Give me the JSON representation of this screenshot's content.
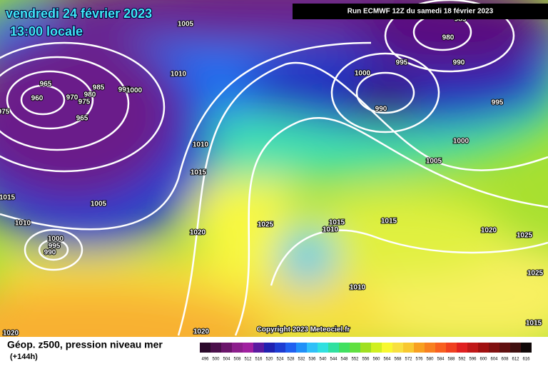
{
  "header": {
    "date": "vendredi 24 février 2023",
    "time": "13:00 locale",
    "run": "Run ECMWF 12Z du samedi 18 février 2023"
  },
  "copyright": "Copyright 2023 Meteociel.fr",
  "footer": {
    "title": "Géop. z500, pression niveau mer",
    "lead": "(+144h)"
  },
  "isobar_labels": [
    "1005",
    "1010",
    "965",
    "960",
    "970",
    "980",
    "975",
    "985",
    "995",
    "1000",
    "965",
    "975",
    "1010",
    "1015",
    "1005",
    "1010",
    "1015",
    "1000",
    "995",
    "990",
    "1020",
    "1025",
    "1015",
    "1010",
    "1015",
    "1020",
    "1025",
    "1025",
    "1010",
    "1015",
    "1020",
    "1020",
    "1000",
    "995",
    "990",
    "980",
    "985",
    "990",
    "995",
    "1000",
    "1005"
  ],
  "scale": {
    "labels": [
      496,
      500,
      504,
      508,
      512,
      516,
      520,
      524,
      528,
      532,
      536,
      540,
      544,
      548,
      552,
      556,
      560,
      564,
      568,
      572,
      576,
      580,
      584,
      588,
      592,
      596,
      600,
      604,
      608,
      612,
      616
    ],
    "colors": [
      "#2b0a2b",
      "#4b0f4b",
      "#6b156b",
      "#8c1e8c",
      "#a020a0",
      "#5a1aa0",
      "#2020b0",
      "#1e3cd2",
      "#2060f0",
      "#2090f8",
      "#30c0f8",
      "#30e0e0",
      "#30e0a0",
      "#40e060",
      "#60e040",
      "#a0e020",
      "#d0f020",
      "#f8f830",
      "#f8e040",
      "#f8c830",
      "#f8a020",
      "#f88020",
      "#f86020",
      "#f04020",
      "#e02020",
      "#c01818",
      "#a01010",
      "#801010",
      "#601010",
      "#401010",
      "#100808"
    ]
  }
}
